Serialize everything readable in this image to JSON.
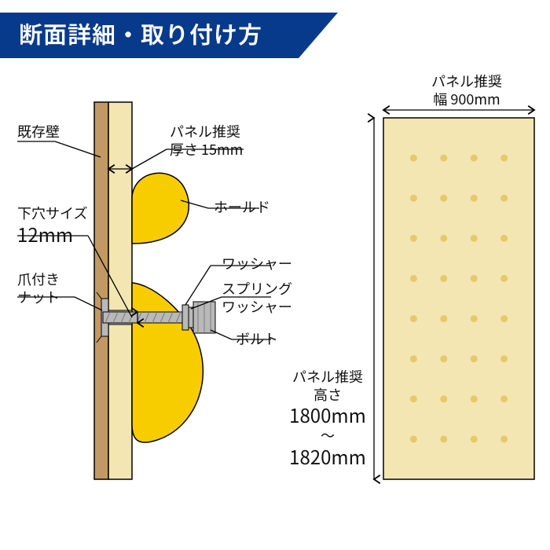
{
  "title": "断面詳細・取り付け方",
  "colors": {
    "title_bg": "#083a8c",
    "wall_brown": "#c29965",
    "panel_cream": "#f3e6b3",
    "hold_yellow": "#f8cd00",
    "bolt_gray": "#b9b9b9",
    "bolt_dark": "#7a7a7a",
    "line": "#000000",
    "dot": "#e6c96a",
    "white": "#ffffff"
  },
  "left": {
    "existing_wall": "既存壁",
    "panel_thickness_l1": "パネル推奨",
    "panel_thickness_l2": "厚さ 15mm",
    "pilot_hole_l1": "下穴サイズ",
    "pilot_hole_l2": "12mm",
    "hold": "ホールド",
    "washer": "ワッシャー",
    "spring_washer_l1": "スプリング",
    "spring_washer_l2": "ワッシャー",
    "bolt": "ボルト",
    "tnut_l1": "爪付き",
    "tnut_l2": "ナット"
  },
  "right": {
    "width_l1": "パネル推奨",
    "width_l2": "幅 900mm",
    "height_l1": "パネル推奨",
    "height_l2": "高さ",
    "height_l3": "1800mm",
    "height_l4": "〜",
    "height_l5": "1820mm",
    "panel": {
      "cols": 4,
      "rows": 8
    }
  }
}
